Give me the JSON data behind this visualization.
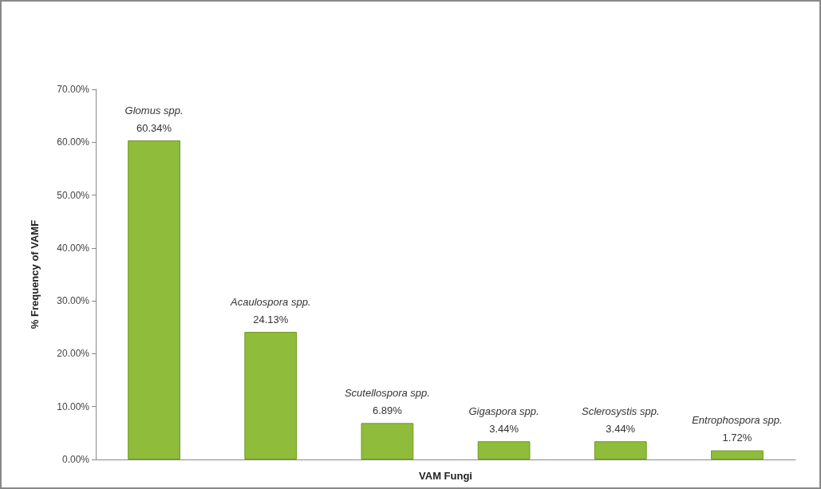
{
  "chart_data": {
    "type": "bar",
    "xlabel": "VAM Fungi",
    "ylabel": "% Frequency of VAMF",
    "categories": [
      "Glomus spp.",
      "Acaulospora spp.",
      "Scutellospora spp.",
      "Gigaspora spp.",
      "Sclerosystis spp.",
      "Entrophospora spp."
    ],
    "values": [
      60.34,
      24.13,
      6.89,
      3.44,
      3.44,
      1.72
    ],
    "value_labels": [
      "60.34%",
      "24.13%",
      "6.89%",
      "3.44%",
      "3.44%",
      "1.72%"
    ],
    "color": "#8fbc3a",
    "ylim": [
      0,
      70
    ],
    "yticks": [
      {
        "value": 0,
        "label": "0.00%"
      },
      {
        "value": 10,
        "label": "10.00%"
      },
      {
        "value": 20,
        "label": "20.00%"
      },
      {
        "value": 30,
        "label": "30.00%"
      },
      {
        "value": 40,
        "label": "40.00%"
      },
      {
        "value": 50,
        "label": "50.00%"
      },
      {
        "value": 60,
        "label": "60.00%"
      },
      {
        "value": 70,
        "label": "70.00%"
      }
    ],
    "tick_labels": "y",
    "grid": false
  }
}
